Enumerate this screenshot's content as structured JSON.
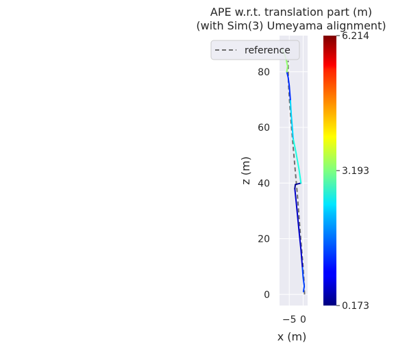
{
  "chart_data": {
    "type": "line",
    "title_line1": "APE w.r.t. translation part (m)",
    "title_line2": "(with Sim(3) Umeyama alignment)",
    "xlabel": "x (m)",
    "ylabel": "z (m)",
    "xlim": [
      -8.5,
      1.6
    ],
    "ylim": [
      -4,
      93
    ],
    "x_ticks": [
      -5,
      0
    ],
    "x_tick_labels": [
      "−5",
      "0"
    ],
    "y_ticks": [
      0,
      20,
      40,
      60,
      80
    ],
    "y_tick_labels": [
      "0",
      "20",
      "40",
      "60",
      "80"
    ],
    "grid": true,
    "legend": {
      "position": "top-right",
      "entries": [
        "reference"
      ]
    },
    "reference": {
      "name": "reference",
      "style": "dashed",
      "color": "#6e6e6e",
      "x": [
        0.5,
        0.3,
        -0.2,
        -0.9,
        -1.5,
        -2.1,
        -2.8,
        -3.5,
        -4.2,
        -4.8,
        -5.3,
        -5.4
      ],
      "z": [
        0,
        5,
        12,
        20,
        28,
        36,
        44,
        52,
        60,
        68,
        76,
        84
      ]
    },
    "estimate": {
      "colormap": "jet",
      "segments": [
        {
          "x": [
            0.1,
            0.4,
            0.0,
            -0.3
          ],
          "z": [
            1,
            3,
            6,
            10
          ],
          "ape": 1.3
        },
        {
          "x": [
            -0.3,
            -0.8,
            -1.4,
            -2.0,
            -2.5,
            -3.0
          ],
          "z": [
            10,
            16,
            22,
            28,
            33,
            38
          ],
          "ape": 0.6
        },
        {
          "x": [
            -3.0,
            -2.8,
            -0.8
          ],
          "z": [
            38,
            39.5,
            40
          ],
          "ape": 0.3
        },
        {
          "x": [
            -0.8,
            -1.5,
            -2.6,
            -3.6
          ],
          "z": [
            40,
            45,
            51,
            56
          ],
          "ape": 2.6
        },
        {
          "x": [
            -3.6,
            -4.0,
            -4.3,
            -4.6
          ],
          "z": [
            56,
            61,
            65,
            70
          ],
          "ape": 2.2
        },
        {
          "x": [
            -4.6,
            -5.0,
            -5.4,
            -5.9
          ],
          "z": [
            70,
            75,
            78,
            80
          ],
          "ape": 1.2
        },
        {
          "x": [
            -5.9,
            -5.6,
            -6.0,
            -6.6,
            -7.6
          ],
          "z": [
            80,
            82,
            84,
            86,
            88
          ],
          "ape": 3.3
        }
      ]
    },
    "colorbar": {
      "min": 0.173,
      "max": 6.214,
      "ticks": [
        0.173,
        3.193,
        6.214
      ],
      "tick_labels": [
        "0.173",
        "3.193",
        "6.214"
      ]
    }
  }
}
